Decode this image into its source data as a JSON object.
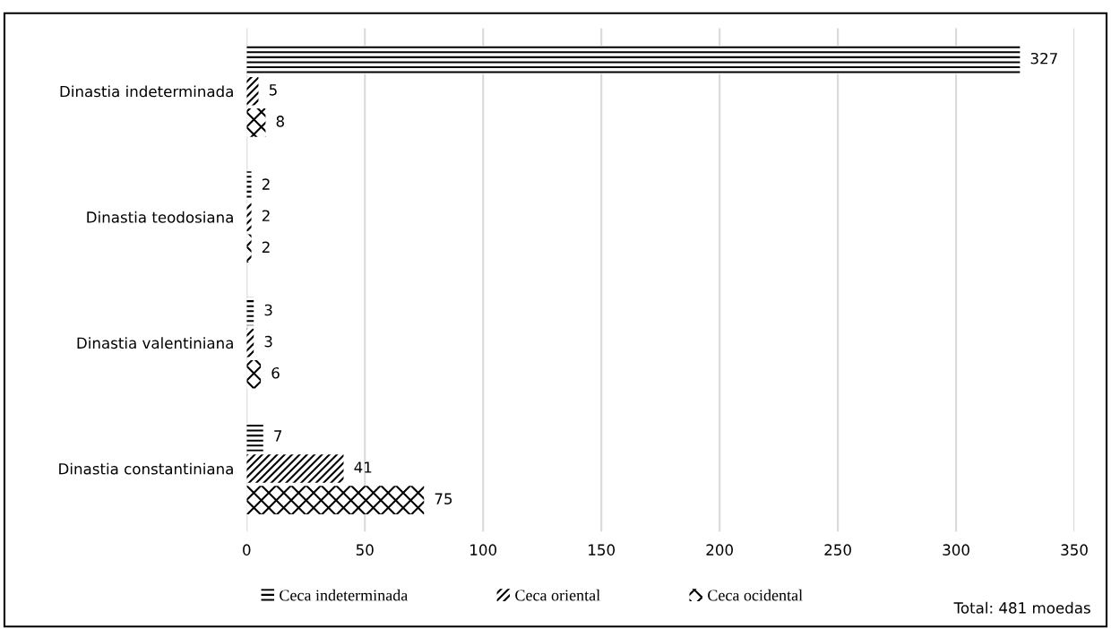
{
  "chart_data": {
    "type": "bar",
    "orientation": "horizontal",
    "categories": [
      "Dinastia indeterminada",
      "Dinastia teodosiana",
      "Dinastia valentiniana",
      "Dinastia constantiniana"
    ],
    "series": [
      {
        "name": "Ceca indeterminada",
        "color": "#000000",
        "values": [
          327,
          2,
          3,
          7
        ]
      },
      {
        "name": "Ceca oriental",
        "color": "#000000",
        "values": [
          5,
          2,
          3,
          41
        ]
      },
      {
        "name": "Ceca ocidental",
        "color": "#000000",
        "values": [
          8,
          2,
          6,
          75
        ]
      }
    ],
    "xlim": [
      0,
      350
    ],
    "xticks": [
      0,
      50,
      100,
      150,
      200,
      250,
      300,
      350
    ],
    "grid": "x",
    "legend": "bottom",
    "data_labels": true,
    "annotations": [
      "Total: 481 moedas"
    ]
  }
}
